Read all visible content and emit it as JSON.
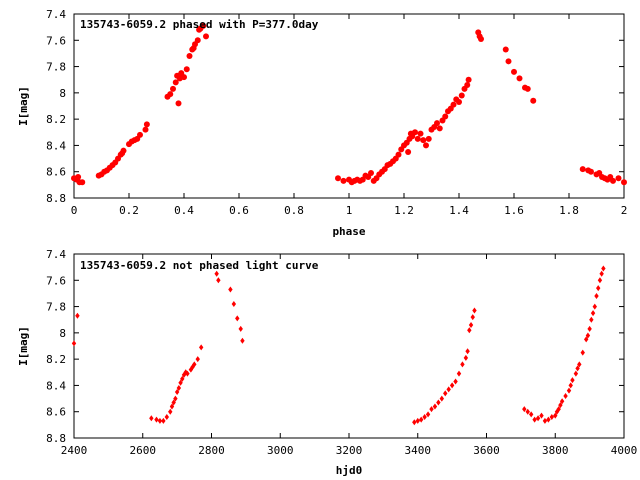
{
  "chart_data": [
    {
      "type": "scatter",
      "title": "135743-6059.2 phased with P=377.0day",
      "xlabel": "phase",
      "ylabel": "I[mag]",
      "xlim": [
        0,
        2
      ],
      "ylim": [
        8.8,
        7.4
      ],
      "y_inverted": true,
      "x_ticks": [
        "0",
        "0.2",
        "0.4",
        "0.6",
        "0.8",
        "1",
        "1.2",
        "1.4",
        "1.6",
        "1.8",
        "2"
      ],
      "y_ticks": [
        "7.4",
        "7.6",
        "7.8",
        "8",
        "8.2",
        "8.4",
        "8.6",
        "8.8"
      ],
      "marker": "filled-circle",
      "color": "#ff0000",
      "points": [
        [
          0.0,
          8.65
        ],
        [
          0.01,
          8.66
        ],
        [
          0.015,
          8.64
        ],
        [
          0.02,
          8.68
        ],
        [
          0.03,
          8.68
        ],
        [
          0.09,
          8.63
        ],
        [
          0.1,
          8.62
        ],
        [
          0.11,
          8.6
        ],
        [
          0.12,
          8.59
        ],
        [
          0.13,
          8.57
        ],
        [
          0.14,
          8.55
        ],
        [
          0.15,
          8.53
        ],
        [
          0.16,
          8.5
        ],
        [
          0.17,
          8.47
        ],
        [
          0.175,
          8.46
        ],
        [
          0.18,
          8.44
        ],
        [
          0.2,
          8.39
        ],
        [
          0.21,
          8.37
        ],
        [
          0.22,
          8.36
        ],
        [
          0.23,
          8.35
        ],
        [
          0.24,
          8.32
        ],
        [
          0.26,
          8.28
        ],
        [
          0.265,
          8.24
        ],
        [
          0.34,
          8.03
        ],
        [
          0.35,
          8.01
        ],
        [
          0.36,
          7.97
        ],
        [
          0.37,
          7.92
        ],
        [
          0.375,
          7.87
        ],
        [
          0.38,
          8.08
        ],
        [
          0.385,
          7.89
        ],
        [
          0.39,
          7.85
        ],
        [
          0.4,
          7.88
        ],
        [
          0.41,
          7.82
        ],
        [
          0.42,
          7.72
        ],
        [
          0.43,
          7.67
        ],
        [
          0.435,
          7.66
        ],
        [
          0.44,
          7.63
        ],
        [
          0.45,
          7.6
        ],
        [
          0.455,
          7.52
        ],
        [
          0.46,
          7.51
        ],
        [
          0.47,
          7.49
        ],
        [
          0.48,
          7.57
        ],
        [
          0.96,
          8.65
        ],
        [
          0.98,
          8.67
        ],
        [
          1.0,
          8.66
        ],
        [
          1.01,
          8.68
        ],
        [
          1.02,
          8.67
        ],
        [
          1.03,
          8.66
        ],
        [
          1.04,
          8.67
        ],
        [
          1.05,
          8.66
        ],
        [
          1.06,
          8.63
        ],
        [
          1.07,
          8.64
        ],
        [
          1.08,
          8.61
        ],
        [
          1.09,
          8.67
        ],
        [
          1.1,
          8.65
        ],
        [
          1.11,
          8.62
        ],
        [
          1.12,
          8.6
        ],
        [
          1.13,
          8.58
        ],
        [
          1.14,
          8.55
        ],
        [
          1.15,
          8.54
        ],
        [
          1.16,
          8.52
        ],
        [
          1.17,
          8.5
        ],
        [
          1.18,
          8.47
        ],
        [
          1.19,
          8.43
        ],
        [
          1.2,
          8.4
        ],
        [
          1.21,
          8.38
        ],
        [
          1.22,
          8.35
        ],
        [
          1.215,
          8.45
        ],
        [
          1.225,
          8.31
        ],
        [
          1.23,
          8.33
        ],
        [
          1.24,
          8.3
        ],
        [
          1.25,
          8.35
        ],
        [
          1.26,
          8.31
        ],
        [
          1.27,
          8.36
        ],
        [
          1.28,
          8.4
        ],
        [
          1.29,
          8.35
        ],
        [
          1.3,
          8.28
        ],
        [
          1.31,
          8.26
        ],
        [
          1.32,
          8.23
        ],
        [
          1.33,
          8.27
        ],
        [
          1.34,
          8.21
        ],
        [
          1.35,
          8.18
        ],
        [
          1.36,
          8.14
        ],
        [
          1.37,
          8.12
        ],
        [
          1.38,
          8.09
        ],
        [
          1.39,
          8.05
        ],
        [
          1.4,
          8.07
        ],
        [
          1.41,
          8.02
        ],
        [
          1.42,
          7.97
        ],
        [
          1.43,
          7.94
        ],
        [
          1.435,
          7.9
        ],
        [
          1.47,
          7.54
        ],
        [
          1.475,
          7.57
        ],
        [
          1.48,
          7.59
        ],
        [
          1.57,
          7.67
        ],
        [
          1.58,
          7.76
        ],
        [
          1.6,
          7.84
        ],
        [
          1.62,
          7.89
        ],
        [
          1.64,
          7.96
        ],
        [
          1.65,
          7.97
        ],
        [
          1.67,
          8.06
        ],
        [
          1.85,
          8.58
        ],
        [
          1.87,
          8.59
        ],
        [
          1.88,
          8.6
        ],
        [
          1.9,
          8.62
        ],
        [
          1.91,
          8.61
        ],
        [
          1.92,
          8.64
        ],
        [
          1.93,
          8.65
        ],
        [
          1.94,
          8.66
        ],
        [
          1.95,
          8.64
        ],
        [
          1.96,
          8.67
        ],
        [
          1.98,
          8.65
        ],
        [
          2.0,
          8.68
        ]
      ]
    },
    {
      "type": "scatter",
      "title": "135743-6059.2 not phased light curve",
      "xlabel": "hjd0",
      "ylabel": "I[mag]",
      "xlim": [
        2400,
        4000
      ],
      "ylim": [
        8.8,
        7.4
      ],
      "y_inverted": true,
      "x_ticks": [
        "2400",
        "2600",
        "2800",
        "3000",
        "3200",
        "3400",
        "3600",
        "3800",
        "4000"
      ],
      "y_ticks": [
        "7.4",
        "7.6",
        "7.8",
        "8",
        "8.2",
        "8.4",
        "8.6",
        "8.8"
      ],
      "marker": "diamond",
      "color": "#ff0000",
      "points": [
        [
          2400,
          8.08
        ],
        [
          2410,
          7.87
        ],
        [
          2625,
          8.65
        ],
        [
          2640,
          8.66
        ],
        [
          2650,
          8.67
        ],
        [
          2660,
          8.67
        ],
        [
          2670,
          8.64
        ],
        [
          2680,
          8.6
        ],
        [
          2685,
          8.56
        ],
        [
          2690,
          8.53
        ],
        [
          2695,
          8.5
        ],
        [
          2700,
          8.45
        ],
        [
          2705,
          8.42
        ],
        [
          2710,
          8.38
        ],
        [
          2715,
          8.35
        ],
        [
          2720,
          8.32
        ],
        [
          2725,
          8.3
        ],
        [
          2730,
          8.31
        ],
        [
          2740,
          8.28
        ],
        [
          2745,
          8.26
        ],
        [
          2750,
          8.24
        ],
        [
          2760,
          8.2
        ],
        [
          2770,
          8.11
        ],
        [
          2815,
          7.55
        ],
        [
          2820,
          7.6
        ],
        [
          2855,
          7.67
        ],
        [
          2865,
          7.78
        ],
        [
          2875,
          7.89
        ],
        [
          2885,
          7.97
        ],
        [
          2890,
          8.06
        ],
        [
          3390,
          8.68
        ],
        [
          3400,
          8.67
        ],
        [
          3410,
          8.66
        ],
        [
          3420,
          8.64
        ],
        [
          3430,
          8.62
        ],
        [
          3440,
          8.58
        ],
        [
          3450,
          8.56
        ],
        [
          3460,
          8.53
        ],
        [
          3470,
          8.5
        ],
        [
          3480,
          8.46
        ],
        [
          3490,
          8.43
        ],
        [
          3500,
          8.4
        ],
        [
          3510,
          8.37
        ],
        [
          3520,
          8.31
        ],
        [
          3530,
          8.24
        ],
        [
          3540,
          8.19
        ],
        [
          3545,
          8.14
        ],
        [
          3550,
          7.98
        ],
        [
          3555,
          7.94
        ],
        [
          3560,
          7.88
        ],
        [
          3565,
          7.83
        ],
        [
          3710,
          8.58
        ],
        [
          3720,
          8.6
        ],
        [
          3730,
          8.62
        ],
        [
          3740,
          8.66
        ],
        [
          3750,
          8.65
        ],
        [
          3760,
          8.63
        ],
        [
          3770,
          8.67
        ],
        [
          3780,
          8.66
        ],
        [
          3790,
          8.64
        ],
        [
          3800,
          8.63
        ],
        [
          3805,
          8.6
        ],
        [
          3810,
          8.58
        ],
        [
          3815,
          8.55
        ],
        [
          3820,
          8.52
        ],
        [
          3830,
          8.48
        ],
        [
          3840,
          8.44
        ],
        [
          3845,
          8.4
        ],
        [
          3850,
          8.36
        ],
        [
          3860,
          8.31
        ],
        [
          3865,
          8.27
        ],
        [
          3870,
          8.24
        ],
        [
          3880,
          8.15
        ],
        [
          3890,
          8.05
        ],
        [
          3895,
          8.02
        ],
        [
          3900,
          7.97
        ],
        [
          3905,
          7.9
        ],
        [
          3910,
          7.85
        ],
        [
          3915,
          7.8
        ],
        [
          3920,
          7.72
        ],
        [
          3925,
          7.66
        ],
        [
          3930,
          7.6
        ],
        [
          3935,
          7.55
        ],
        [
          3940,
          7.51
        ]
      ]
    }
  ]
}
